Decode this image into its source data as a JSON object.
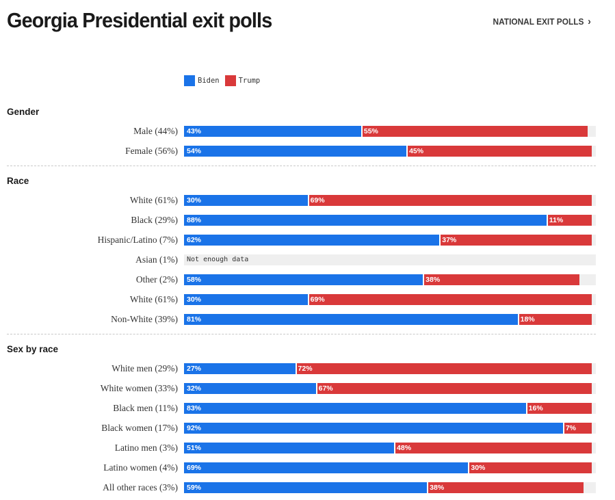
{
  "header": {
    "title": "Georgia Presidential exit polls",
    "national_link": "NATIONAL EXIT POLLS"
  },
  "colors": {
    "biden": "#1a73e8",
    "trump": "#d9393a"
  },
  "legend": [
    {
      "name": "Biden",
      "color": "#1a73e8"
    },
    {
      "name": "Trump",
      "color": "#d9393a"
    }
  ],
  "chart_data": {
    "type": "bar",
    "orientation": "horizontal-stacked",
    "title": "Georgia Presidential exit polls",
    "series_names": [
      "Biden",
      "Trump"
    ],
    "xlim": [
      0,
      100
    ],
    "no_data_text": "Not enough data",
    "sections": [
      {
        "title": "Gender",
        "rows": [
          {
            "label": "Male (44%)",
            "biden": 43,
            "trump": 55
          },
          {
            "label": "Female (56%)",
            "biden": 54,
            "trump": 45
          }
        ]
      },
      {
        "title": "Race",
        "rows": [
          {
            "label": "White (61%)",
            "biden": 30,
            "trump": 69
          },
          {
            "label": "Black (29%)",
            "biden": 88,
            "trump": 11
          },
          {
            "label": "Hispanic/Latino (7%)",
            "biden": 62,
            "trump": 37
          },
          {
            "label": "Asian (1%)",
            "biden": null,
            "trump": null
          },
          {
            "label": "Other (2%)",
            "biden": 58,
            "trump": 38
          },
          {
            "label": "White (61%)",
            "biden": 30,
            "trump": 69
          },
          {
            "label": "Non-White (39%)",
            "biden": 81,
            "trump": 18
          }
        ]
      },
      {
        "title": "Sex by race",
        "rows": [
          {
            "label": "White men (29%)",
            "biden": 27,
            "trump": 72
          },
          {
            "label": "White women (33%)",
            "biden": 32,
            "trump": 67
          },
          {
            "label": "Black men (11%)",
            "biden": 83,
            "trump": 16
          },
          {
            "label": "Black women (17%)",
            "biden": 92,
            "trump": 7
          },
          {
            "label": "Latino men (3%)",
            "biden": 51,
            "trump": 48
          },
          {
            "label": "Latino women (4%)",
            "biden": 69,
            "trump": 30
          },
          {
            "label": "All other races (3%)",
            "biden": 59,
            "trump": 38
          }
        ]
      }
    ]
  }
}
